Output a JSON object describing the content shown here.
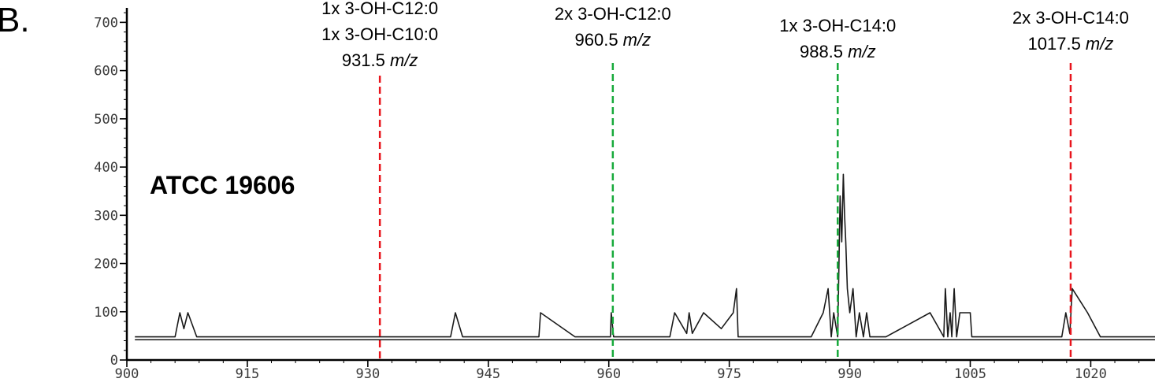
{
  "chart_data": {
    "type": "line",
    "panel_label": "B.",
    "sample_label": "ATCC 19606",
    "xlim": [
      900,
      1028
    ],
    "ylim": [
      0,
      730
    ],
    "x_ticks": [
      900,
      915,
      930,
      945,
      960,
      975,
      990,
      1005,
      1020
    ],
    "y_ticks": [
      0,
      100,
      200,
      300,
      400,
      500,
      600,
      700
    ],
    "x_tick_labels": [
      "900",
      "915",
      "930",
      "945",
      "960",
      "975",
      "990",
      "1005",
      "1020"
    ],
    "y_tick_labels": [
      "0",
      "100",
      "200",
      "300",
      "400",
      "500",
      "600",
      "700"
    ],
    "baseline": 42,
    "series": [
      {
        "points": [
          [
            901,
            48
          ],
          [
            906,
            48
          ],
          [
            906.6,
            98
          ],
          [
            907.1,
            65
          ],
          [
            907.6,
            98
          ],
          [
            908.7,
            48
          ],
          [
            940.3,
            48
          ],
          [
            940.9,
            98
          ],
          [
            941.8,
            48
          ],
          [
            951.3,
            48
          ],
          [
            951.5,
            98
          ],
          [
            955.8,
            48
          ],
          [
            960.2,
            48
          ],
          [
            960.3,
            98
          ],
          [
            960.6,
            48
          ],
          [
            967.6,
            48
          ],
          [
            968.2,
            98
          ],
          [
            969.7,
            55
          ],
          [
            970.0,
            98
          ],
          [
            970.4,
            55
          ],
          [
            971.8,
            98
          ],
          [
            974.0,
            65
          ],
          [
            975.5,
            98
          ],
          [
            975.9,
            148
          ],
          [
            976.1,
            48
          ],
          [
            985.2,
            48
          ],
          [
            986.7,
            98
          ],
          [
            987.3,
            148
          ],
          [
            987.7,
            48
          ],
          [
            988.0,
            98
          ],
          [
            988.5,
            48
          ],
          [
            988.8,
            340
          ],
          [
            989.0,
            245
          ],
          [
            989.2,
            385
          ],
          [
            989.35,
            300
          ],
          [
            989.5,
            245
          ],
          [
            989.7,
            148
          ],
          [
            990.0,
            98
          ],
          [
            990.4,
            148
          ],
          [
            990.8,
            48
          ],
          [
            991.2,
            98
          ],
          [
            991.7,
            48
          ],
          [
            992.1,
            98
          ],
          [
            992.5,
            48
          ],
          [
            994.5,
            48
          ],
          [
            1000.0,
            98
          ],
          [
            1001.7,
            48
          ],
          [
            1001.9,
            148
          ],
          [
            1002.2,
            48
          ],
          [
            1002.5,
            98
          ],
          [
            1002.7,
            48
          ],
          [
            1003.0,
            148
          ],
          [
            1003.3,
            48
          ],
          [
            1003.7,
            98
          ],
          [
            1005.0,
            98
          ],
          [
            1005.2,
            48
          ],
          [
            1016.4,
            48
          ],
          [
            1016.9,
            98
          ],
          [
            1017.4,
            55
          ],
          [
            1017.7,
            148
          ],
          [
            1019.6,
            98
          ],
          [
            1021.2,
            48
          ],
          [
            1028,
            48
          ]
        ]
      }
    ],
    "markers": [
      {
        "x": 931.5,
        "color": "#e8141c",
        "lines": [
          "1x 3-OH-C12:0",
          "1x 3-OH-C10:0"
        ],
        "mz_value": "931.5",
        "mz_unit": "m/z"
      },
      {
        "x": 960.5,
        "color": "#16a93a",
        "lines": [
          "2x 3-OH-C12:0"
        ],
        "mz_value": "960.5",
        "mz_unit": "m/z"
      },
      {
        "x": 988.5,
        "color": "#16a93a",
        "lines": [
          "1x 3-OH-C14:0"
        ],
        "mz_value": "988.5",
        "mz_unit": "m/z"
      },
      {
        "x": 1017.5,
        "color": "#e8141c",
        "lines": [
          "2x 3-OH-C14:0"
        ],
        "mz_value": "1017.5",
        "mz_unit": "m/z"
      }
    ],
    "grid": false,
    "legend": "none"
  }
}
